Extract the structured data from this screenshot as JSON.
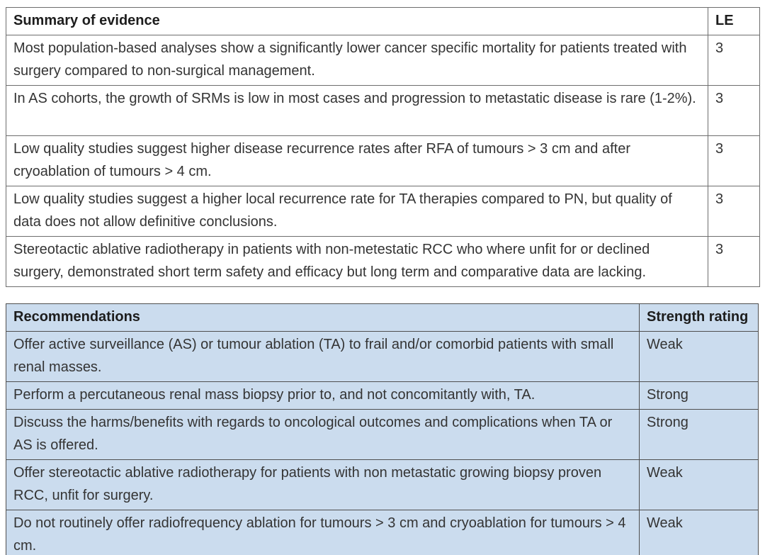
{
  "colors": {
    "rec_bg": "#cbdcee",
    "evidence_border": "#6e6e6e",
    "rec_border": "#4f4f4f",
    "text": "#343434",
    "heading": "#1d1d1d",
    "page_bg": "#ffffff"
  },
  "evidence_table": {
    "title": "Summary of evidence",
    "le_label": "LE",
    "rows": [
      {
        "text": "Most population-based analyses show a significantly lower cancer specific mortality for patients treated with surgery compared to non-surgical management.",
        "le": "3"
      },
      {
        "text": "In AS cohorts, the growth of SRMs is low in most cases and progression to metastatic disease is rare (1-2%).",
        "le": "3"
      },
      {
        "text": "Low quality studies suggest higher disease recurrence rates after RFA of tumours > 3 cm and after cryoablation of tumours > 4 cm.",
        "le": "3"
      },
      {
        "text": "Low quality studies suggest a higher local recurrence rate for TA therapies compared to PN, but quality of data does not allow definitive conclusions.",
        "le": "3"
      },
      {
        "text": "Stereotactic ablative radiotherapy in patients with non-metestatic RCC who where unfit for or declined surgery, demonstrated short term safety and efficacy but long term and comparative data are lacking.",
        "le": "3"
      }
    ]
  },
  "recommendations_table": {
    "title": "Recommendations",
    "strength_label": "Strength rating",
    "rows": [
      {
        "text": "Offer active surveillance (AS) or tumour ablation (TA) to frail and/or comorbid patients with small renal masses.",
        "strength": "Weak"
      },
      {
        "text": "Perform a percutaneous renal mass biopsy prior to, and not concomitantly with, TA.",
        "strength": "Strong"
      },
      {
        "text": "Discuss the harms/benefits with regards to oncological outcomes and complications when TA or AS is offered.",
        "strength": "Strong"
      },
      {
        "text": "Offer stereotactic ablative radiotherapy for patients with non metastatic growing biopsy proven RCC, unfit for surgery.",
        "strength": "Weak"
      },
      {
        "text": "Do not routinely offer radiofrequency ablation for tumours > 3 cm and cryoablation for tumours > 4 cm.",
        "strength": "Weak"
      }
    ]
  }
}
